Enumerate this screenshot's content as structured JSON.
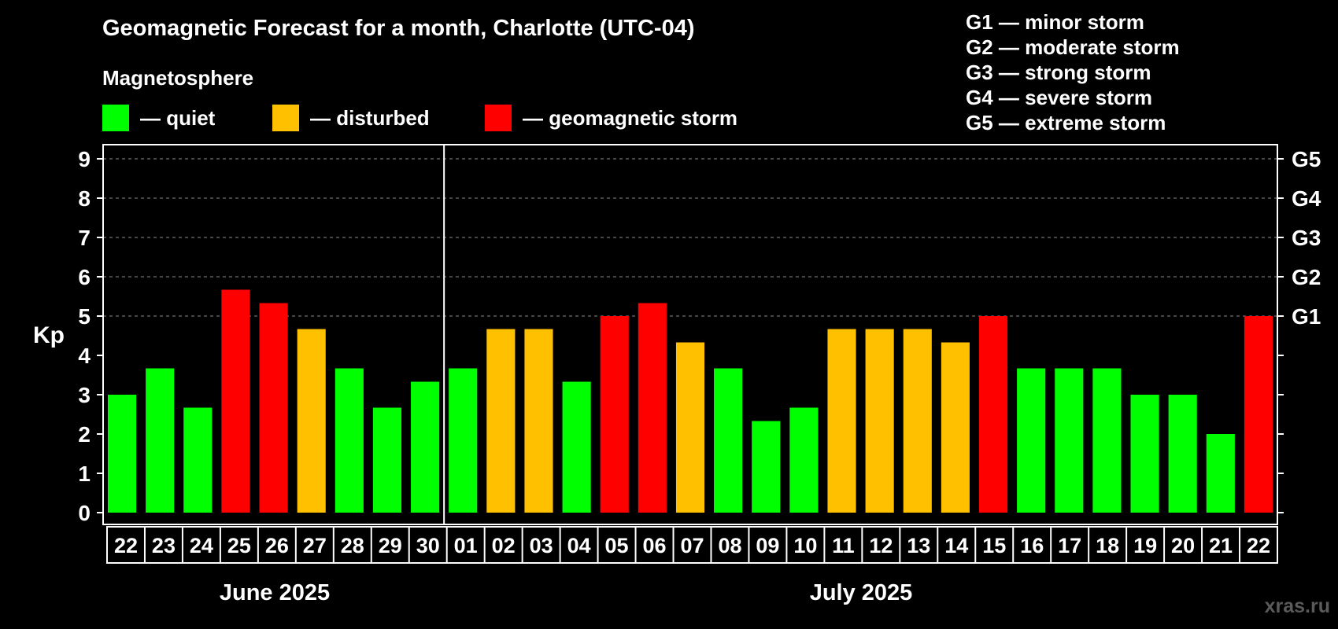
{
  "title": "Geomagnetic Forecast for a month, Charlotte (UTC-04)",
  "subtitle": "Magnetosphere",
  "legend": [
    {
      "label": "— quiet",
      "color": "#00ff00"
    },
    {
      "label": "— disturbed",
      "color": "#ffc000"
    },
    {
      "label": "— geomagnetic storm",
      "color": "#ff0000"
    }
  ],
  "storm_levels": [
    "G1 — minor storm",
    "G2 — moderate storm",
    "G3 — strong storm",
    "G4 — severe storm",
    "G5 — extreme storm"
  ],
  "months": [
    "June 2025",
    "July 2025"
  ],
  "watermark": "xras.ru",
  "chart_data": {
    "type": "bar",
    "ylabel": "Kp",
    "ylim": [
      0,
      9
    ],
    "yticks": [
      "0",
      "1",
      "2",
      "3",
      "4",
      "5",
      "6",
      "7",
      "8",
      "9"
    ],
    "right_ticks": [
      {
        "value": 5,
        "label": "G1"
      },
      {
        "value": 6,
        "label": "G2"
      },
      {
        "value": 7,
        "label": "G3"
      },
      {
        "value": 8,
        "label": "G4"
      },
      {
        "value": 9,
        "label": "G5"
      }
    ],
    "grid": "dashed horizontal at 5 to 9",
    "categories": [
      "22",
      "23",
      "24",
      "25",
      "26",
      "27",
      "28",
      "29",
      "30",
      "01",
      "02",
      "03",
      "04",
      "05",
      "06",
      "07",
      "08",
      "09",
      "10",
      "11",
      "12",
      "13",
      "14",
      "15",
      "16",
      "17",
      "18",
      "19",
      "20",
      "21",
      "22"
    ],
    "values": [
      3.0,
      3.67,
      2.67,
      5.67,
      5.33,
      4.67,
      3.67,
      2.67,
      3.33,
      3.67,
      4.67,
      4.67,
      3.33,
      5.0,
      5.33,
      4.33,
      3.67,
      2.33,
      2.67,
      4.67,
      4.67,
      4.67,
      4.33,
      5.0,
      3.67,
      3.67,
      3.67,
      3.0,
      3.0,
      2.0,
      5.0
    ],
    "status": [
      "quiet",
      "quiet",
      "quiet",
      "storm",
      "storm",
      "disturbed",
      "quiet",
      "quiet",
      "quiet",
      "quiet",
      "disturbed",
      "disturbed",
      "quiet",
      "storm",
      "storm",
      "disturbed",
      "quiet",
      "quiet",
      "quiet",
      "disturbed",
      "disturbed",
      "disturbed",
      "disturbed",
      "storm",
      "quiet",
      "quiet",
      "quiet",
      "quiet",
      "quiet",
      "quiet",
      "storm"
    ],
    "status_colors": {
      "quiet": "#00ff00",
      "disturbed": "#ffc000",
      "storm": "#ff0000"
    }
  }
}
